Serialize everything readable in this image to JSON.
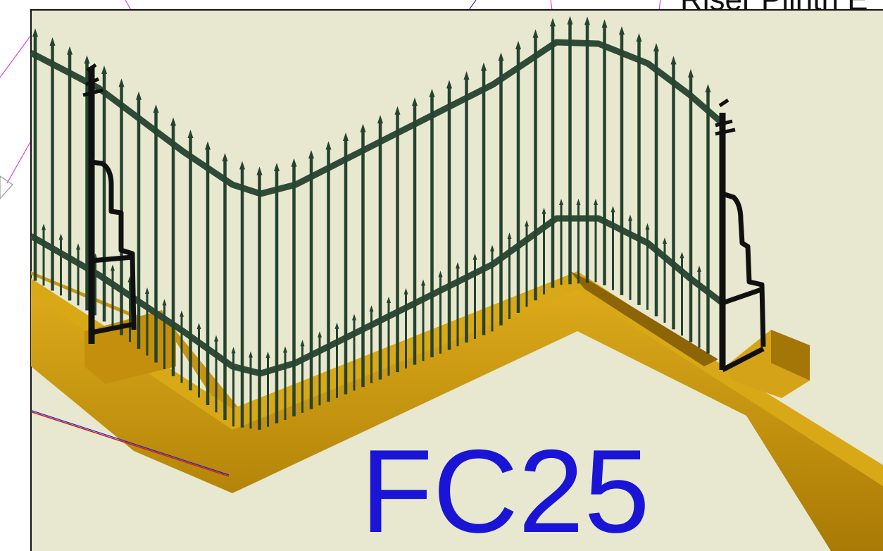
{
  "header_text": "Riser Plinth E",
  "code_label": "FC25",
  "colors": {
    "canvas": "#e7e8cf",
    "frame": "#111111",
    "rail": "#2f4b37",
    "bar": "#25432f",
    "post": "#101010",
    "plinth_top": "#d7a416",
    "plinth_front": "#b88506",
    "plinth_dark": "#7d5a07",
    "label": "#1a14d6",
    "cad_magenta": "#e040e0",
    "cad_red": "#d02020",
    "cad_blue": "#2020d0"
  }
}
